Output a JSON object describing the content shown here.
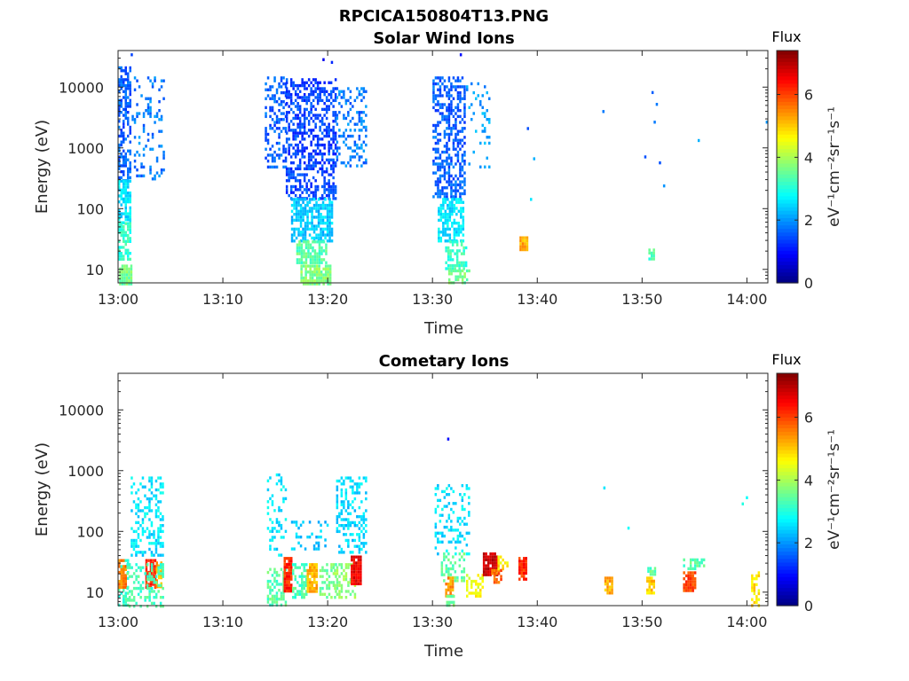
{
  "figure": {
    "file_title": "RPCICA150804T13.PNG"
  },
  "chart_data": [
    {
      "type": "heatmap",
      "title": "Solar Wind Ions",
      "xlabel": "Time",
      "ylabel": "Energy (eV)",
      "x_ticks": [
        "13:00",
        "13:10",
        "13:20",
        "13:30",
        "13:40",
        "13:50",
        "14:00"
      ],
      "x_range_min": [
        0,
        62
      ],
      "y_scale": "log",
      "y_ticks": [
        10,
        100,
        1000,
        10000
      ],
      "y_tick_labels": [
        "10",
        "100",
        "1000",
        "10000"
      ],
      "y_range": [
        6,
        40000
      ],
      "colorbar": {
        "title": "Flux",
        "label": "eV⁻¹cm⁻²sr⁻¹s⁻¹",
        "range": [
          0,
          7.4
        ],
        "ticks": [
          0,
          2,
          4,
          6
        ],
        "tick_labels": [
          "0",
          "2",
          "4",
          "6"
        ],
        "colormap": "jet"
      },
      "value_note": "flux value = approximate log10 level (colour scale 0–7.4)",
      "blocks": [
        {
          "t": [
            0.0,
            1.2
          ],
          "e": [
            300,
            22000
          ],
          "v": 1.6,
          "d": 0.55
        },
        {
          "t": [
            0.0,
            1.2
          ],
          "e": [
            60,
            300
          ],
          "v": 2.6,
          "d": 0.8
        },
        {
          "t": [
            0.0,
            1.2
          ],
          "e": [
            15,
            60
          ],
          "v": 3.1,
          "d": 0.75
        },
        {
          "t": [
            0.1,
            1.4
          ],
          "e": [
            6,
            12
          ],
          "v": 3.6,
          "d": 0.9
        },
        {
          "t": [
            1.3,
            4.4
          ],
          "e": [
            300,
            15000
          ],
          "v": 1.8,
          "d": 0.18
        },
        {
          "t": [
            14.0,
            16.0
          ],
          "e": [
            500,
            15000
          ],
          "v": 1.6,
          "d": 0.35
        },
        {
          "t": [
            16.0,
            20.8
          ],
          "e": [
            150,
            14000
          ],
          "v": 1.4,
          "d": 0.5
        },
        {
          "t": [
            16.5,
            20.5
          ],
          "e": [
            30,
            150
          ],
          "v": 2.4,
          "d": 0.7
        },
        {
          "t": [
            17.0,
            20.0
          ],
          "e": [
            12,
            30
          ],
          "v": 3.4,
          "d": 0.75
        },
        {
          "t": [
            17.4,
            20.2
          ],
          "e": [
            6,
            12
          ],
          "v": 3.7,
          "d": 0.8
        },
        {
          "t": [
            20.8,
            23.7
          ],
          "e": [
            500,
            10000
          ],
          "v": 1.8,
          "d": 0.25
        },
        {
          "t": [
            30.0,
            33.2
          ],
          "e": [
            150,
            15000
          ],
          "v": 1.6,
          "d": 0.5
        },
        {
          "t": [
            30.5,
            33.0
          ],
          "e": [
            30,
            150
          ],
          "v": 2.6,
          "d": 0.65
        },
        {
          "t": [
            31.2,
            33.2
          ],
          "e": [
            10,
            30
          ],
          "v": 3.2,
          "d": 0.6
        },
        {
          "t": [
            31.5,
            33.5
          ],
          "e": [
            6,
            10
          ],
          "v": 3.6,
          "d": 0.6
        },
        {
          "t": [
            33.2,
            35.5
          ],
          "e": [
            500,
            12000
          ],
          "v": 2.1,
          "d": 0.12
        },
        {
          "t": [
            38.3,
            39.0
          ],
          "e": [
            20,
            35
          ],
          "v": 5.2,
          "d": 0.9
        },
        {
          "t": [
            50.6,
            51.2
          ],
          "e": [
            15,
            22
          ],
          "v": 3.3,
          "d": 0.8
        }
      ],
      "points": [
        {
          "t": 1.2,
          "e": 36000,
          "v": 1.4
        },
        {
          "t": 19.5,
          "e": 30000,
          "v": 0.8
        },
        {
          "t": 20.3,
          "e": 27000,
          "v": 1.2
        },
        {
          "t": 32.6,
          "e": 36000,
          "v": 1.0
        },
        {
          "t": 39.0,
          "e": 2200,
          "v": 1.5
        },
        {
          "t": 39.6,
          "e": 700,
          "v": 2.2
        },
        {
          "t": 39.3,
          "e": 150,
          "v": 2.6
        },
        {
          "t": 46.2,
          "e": 4200,
          "v": 1.8
        },
        {
          "t": 50.2,
          "e": 750,
          "v": 1.5
        },
        {
          "t": 51.1,
          "e": 2800,
          "v": 1.8
        },
        {
          "t": 50.9,
          "e": 8600,
          "v": 1.6
        },
        {
          "t": 51.3,
          "e": 5500,
          "v": 1.8
        },
        {
          "t": 51.6,
          "e": 600,
          "v": 1.5
        },
        {
          "t": 52.0,
          "e": 250,
          "v": 2.0
        },
        {
          "t": 55.3,
          "e": 1400,
          "v": 2.2
        },
        {
          "t": 61.8,
          "e": 2800,
          "v": 2.0
        }
      ]
    },
    {
      "type": "heatmap",
      "title": "Cometary Ions",
      "xlabel": "Time",
      "ylabel": "Energy (eV)",
      "x_ticks": [
        "13:00",
        "13:10",
        "13:20",
        "13:30",
        "13:40",
        "13:50",
        "14:00"
      ],
      "x_range_min": [
        0,
        62
      ],
      "y_scale": "log",
      "y_ticks": [
        10,
        100,
        1000,
        10000
      ],
      "y_tick_labels": [
        "10",
        "100",
        "1000",
        "10000"
      ],
      "y_range": [
        6,
        40000
      ],
      "colorbar": {
        "title": "Flux",
        "label": "eV⁻¹cm⁻²sr⁻¹s⁻¹",
        "range": [
          0,
          7.4
        ],
        "ticks": [
          0,
          2,
          4,
          6
        ],
        "tick_labels": [
          "0",
          "2",
          "4",
          "6"
        ],
        "colormap": "jet"
      },
      "value_note": "flux value = approximate log10 level (colour scale 0–7.4)",
      "blocks": [
        {
          "t": [
            1.2,
            4.4
          ],
          "e": [
            40,
            800
          ],
          "v": 2.6,
          "d": 0.35
        },
        {
          "t": [
            0.0,
            1.0
          ],
          "e": [
            6,
            35
          ],
          "v": 3.2,
          "d": 0.55
        },
        {
          "t": [
            0.0,
            0.7
          ],
          "e": [
            12,
            35
          ],
          "v": 5.6,
          "d": 0.8
        },
        {
          "t": [
            2.6,
            3.6
          ],
          "e": [
            12,
            35
          ],
          "v": 6.2,
          "d": 0.85
        },
        {
          "t": [
            3.6,
            4.2
          ],
          "e": [
            12,
            32
          ],
          "v": 5.2,
          "d": 0.8
        },
        {
          "t": [
            0.8,
            4.4
          ],
          "e": [
            6,
            30
          ],
          "v": 3.3,
          "d": 0.4
        },
        {
          "t": [
            14.2,
            16.0
          ],
          "e": [
            40,
            900
          ],
          "v": 2.6,
          "d": 0.25
        },
        {
          "t": [
            14.2,
            16.0
          ],
          "e": [
            6,
            25
          ],
          "v": 3.4,
          "d": 0.5
        },
        {
          "t": [
            15.8,
            16.6
          ],
          "e": [
            10,
            38
          ],
          "v": 6.2,
          "d": 0.9
        },
        {
          "t": [
            16.6,
            18.0
          ],
          "e": [
            8,
            30
          ],
          "v": 3.3,
          "d": 0.5
        },
        {
          "t": [
            18.0,
            19.1
          ],
          "e": [
            10,
            30
          ],
          "v": 5.2,
          "d": 0.85
        },
        {
          "t": [
            16.5,
            20.0
          ],
          "e": [
            50,
            150
          ],
          "v": 2.4,
          "d": 0.2
        },
        {
          "t": [
            19.2,
            20.8
          ],
          "e": [
            8,
            30
          ],
          "v": 3.6,
          "d": 0.5
        },
        {
          "t": [
            20.6,
            22.6
          ],
          "e": [
            8,
            30
          ],
          "v": 3.8,
          "d": 0.45
        },
        {
          "t": [
            22.2,
            23.2
          ],
          "e": [
            14,
            40
          ],
          "v": 6.6,
          "d": 0.9
        },
        {
          "t": [
            20.8,
            23.6
          ],
          "e": [
            45,
            800
          ],
          "v": 2.5,
          "d": 0.35
        },
        {
          "t": [
            30.2,
            33.6
          ],
          "e": [
            40,
            600
          ],
          "v": 2.6,
          "d": 0.25
        },
        {
          "t": [
            30.8,
            33.0
          ],
          "e": [
            15,
            45
          ],
          "v": 3.5,
          "d": 0.45
        },
        {
          "t": [
            31.2,
            31.9
          ],
          "e": [
            9,
            18
          ],
          "v": 5.4,
          "d": 0.8
        },
        {
          "t": [
            31.3,
            32.0
          ],
          "e": [
            6,
            9
          ],
          "v": 3.6,
          "d": 0.5
        },
        {
          "t": [
            33.2,
            34.8
          ],
          "e": [
            8,
            20
          ],
          "v": 4.6,
          "d": 0.5
        },
        {
          "t": [
            34.8,
            36.2
          ],
          "e": [
            20,
            45
          ],
          "v": 6.8,
          "d": 0.9
        },
        {
          "t": [
            35.6,
            36.6
          ],
          "e": [
            14,
            24
          ],
          "v": 5.8,
          "d": 0.8
        },
        {
          "t": [
            36.2,
            37.2
          ],
          "e": [
            24,
            40
          ],
          "v": 4.8,
          "d": 0.5
        },
        {
          "t": [
            38.2,
            38.9
          ],
          "e": [
            16,
            38
          ],
          "v": 6.2,
          "d": 0.9
        },
        {
          "t": [
            46.4,
            47.2
          ],
          "e": [
            10,
            18
          ],
          "v": 5.2,
          "d": 0.9
        },
        {
          "t": [
            50.4,
            51.2
          ],
          "e": [
            10,
            18
          ],
          "v": 5.0,
          "d": 0.9
        },
        {
          "t": [
            50.5,
            51.2
          ],
          "e": [
            20,
            26
          ],
          "v": 3.4,
          "d": 0.9
        },
        {
          "t": [
            53.9,
            55.2
          ],
          "e": [
            10,
            22
          ],
          "v": 6.0,
          "d": 0.9
        },
        {
          "t": [
            53.9,
            56.0
          ],
          "e": [
            24,
            36
          ],
          "v": 3.4,
          "d": 0.5
        },
        {
          "t": [
            60.4,
            61.1
          ],
          "e": [
            6,
            22
          ],
          "v": 4.8,
          "d": 0.6
        }
      ],
      "points": [
        {
          "t": 31.4,
          "e": 3500,
          "v": 1.0
        },
        {
          "t": 46.3,
          "e": 550,
          "v": 2.6
        },
        {
          "t": 48.6,
          "e": 120,
          "v": 2.8
        },
        {
          "t": 59.9,
          "e": 380,
          "v": 2.8
        },
        {
          "t": 59.5,
          "e": 300,
          "v": 3.0
        }
      ]
    }
  ]
}
